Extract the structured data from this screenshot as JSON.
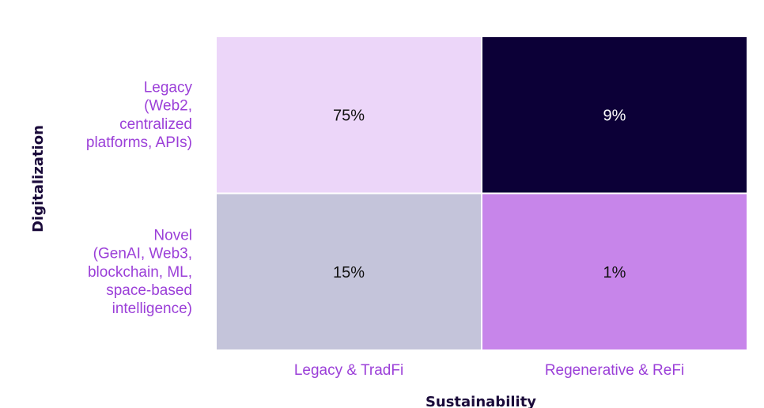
{
  "chart_data": {
    "type": "heatmap",
    "xlabel": "Sustainability",
    "ylabel": "Digitalization",
    "x_categories": [
      "Legacy & TradFi",
      "Regenerative & ReFi"
    ],
    "y_categories": [
      [
        "Legacy",
        "(Web2,",
        "centralized",
        "platforms, APIs)"
      ],
      [
        "Novel",
        "(GenAI, Web3,",
        "blockchain, ML,",
        "space-based",
        "intelligence)"
      ]
    ],
    "values": [
      [
        75,
        9
      ],
      [
        15,
        1
      ]
    ],
    "value_labels": [
      [
        "75%",
        "9%"
      ],
      [
        "15%",
        "1%"
      ]
    ],
    "cell_colors": [
      [
        "#ecd6f9",
        "#0c0037"
      ],
      [
        "#c4c4da",
        "#c785ea"
      ]
    ],
    "label_colors": [
      [
        "#111111",
        "#ffffff"
      ],
      [
        "#111111",
        "#111111"
      ]
    ]
  }
}
